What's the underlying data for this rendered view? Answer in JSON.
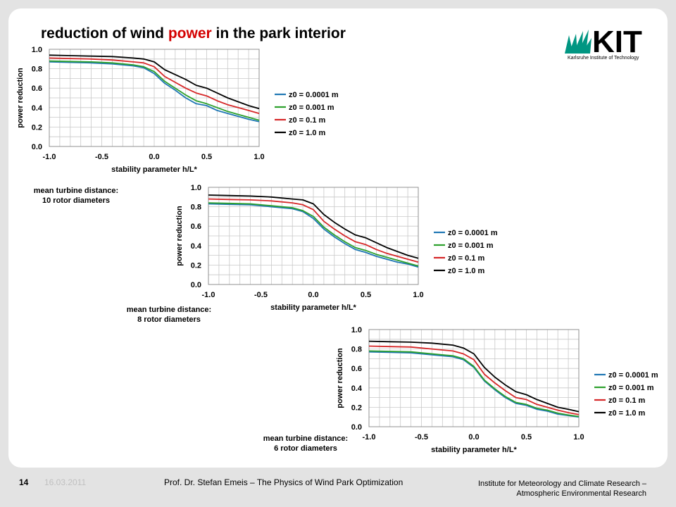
{
  "slide": {
    "title_pre": "reduction of wind ",
    "title_accent": "power",
    "title_post": " in the park interior",
    "accent_color": "#d40000"
  },
  "logo": {
    "text": "KIT",
    "subtitle": "Karlsruhe Institute of Technology",
    "color": "#009682"
  },
  "labels": {
    "chart1": [
      "mean turbine distance:",
      "10 rotor diameters"
    ],
    "chart2": [
      "mean turbine distance:",
      "8 rotor diameters"
    ],
    "chart3": [
      "mean turbine distance:",
      "6 rotor diameters"
    ]
  },
  "footer": {
    "page_number": "14",
    "date": "16.03.2011",
    "author": "Prof. Dr. Stefan Emeis – The Physics of Wind Park Optimization",
    "institute_line1": "Institute for Meteorology and Climate Research –",
    "institute_line2": "Atmospheric Environmental Research"
  },
  "chart_data": [
    {
      "type": "line",
      "xlabel": "stability parameter h/L*",
      "ylabel": "power reduction",
      "xlim": [
        -1.0,
        1.0
      ],
      "ylim": [
        0.0,
        1.0
      ],
      "xticks": [
        "-1.0",
        "-0.5",
        "0.0",
        "0.5",
        "1.0"
      ],
      "yticks": [
        "0.0",
        "0.2",
        "0.4",
        "0.6",
        "0.8",
        "1.0"
      ],
      "grid": true,
      "legend": "right",
      "x": [
        -1.0,
        -0.8,
        -0.6,
        -0.4,
        -0.2,
        -0.1,
        0.0,
        0.1,
        0.2,
        0.3,
        0.4,
        0.5,
        0.6,
        0.7,
        0.8,
        0.9,
        1.0
      ],
      "series": [
        {
          "name": "z0 = 0.0001 m",
          "color": "#1f77b4",
          "values": [
            0.87,
            0.865,
            0.86,
            0.85,
            0.83,
            0.81,
            0.75,
            0.65,
            0.58,
            0.5,
            0.44,
            0.42,
            0.37,
            0.34,
            0.31,
            0.28,
            0.255
          ]
        },
        {
          "name": "z0 = 0.001 m",
          "color": "#2ca02c",
          "values": [
            0.88,
            0.875,
            0.87,
            0.86,
            0.84,
            0.82,
            0.77,
            0.67,
            0.6,
            0.53,
            0.47,
            0.44,
            0.4,
            0.36,
            0.33,
            0.3,
            0.27
          ]
        },
        {
          "name": "z0 = 0.1 m",
          "color": "#d62728",
          "values": [
            0.91,
            0.905,
            0.9,
            0.89,
            0.87,
            0.86,
            0.82,
            0.72,
            0.66,
            0.6,
            0.55,
            0.52,
            0.47,
            0.43,
            0.4,
            0.37,
            0.34
          ]
        },
        {
          "name": "z0 = 1.0 m",
          "color": "#000000",
          "values": [
            0.94,
            0.935,
            0.93,
            0.925,
            0.91,
            0.9,
            0.87,
            0.79,
            0.74,
            0.69,
            0.63,
            0.6,
            0.55,
            0.5,
            0.46,
            0.42,
            0.39
          ]
        }
      ]
    },
    {
      "type": "line",
      "xlabel": "stability parameter h/L*",
      "ylabel": "power reduction",
      "xlim": [
        -1.0,
        1.0
      ],
      "ylim": [
        0.0,
        1.0
      ],
      "xticks": [
        "-1.0",
        "-0.5",
        "0.0",
        "0.5",
        "1.0"
      ],
      "yticks": [
        "0.0",
        "0.2",
        "0.4",
        "0.6",
        "0.8",
        "1.0"
      ],
      "grid": true,
      "legend": "right",
      "x": [
        -1.0,
        -0.8,
        -0.6,
        -0.4,
        -0.2,
        -0.1,
        0.0,
        0.1,
        0.2,
        0.3,
        0.4,
        0.5,
        0.6,
        0.7,
        0.8,
        0.9,
        1.0
      ],
      "series": [
        {
          "name": "z0 = 0.0001 m",
          "color": "#1f77b4",
          "values": [
            0.83,
            0.825,
            0.82,
            0.8,
            0.78,
            0.75,
            0.68,
            0.57,
            0.49,
            0.42,
            0.36,
            0.33,
            0.29,
            0.26,
            0.23,
            0.21,
            0.18
          ]
        },
        {
          "name": "z0 = 0.001 m",
          "color": "#2ca02c",
          "values": [
            0.84,
            0.835,
            0.83,
            0.81,
            0.79,
            0.76,
            0.7,
            0.59,
            0.51,
            0.44,
            0.38,
            0.35,
            0.31,
            0.28,
            0.25,
            0.22,
            0.19
          ]
        },
        {
          "name": "z0 = 0.1 m",
          "color": "#d62728",
          "values": [
            0.88,
            0.875,
            0.87,
            0.86,
            0.84,
            0.82,
            0.77,
            0.65,
            0.57,
            0.5,
            0.44,
            0.41,
            0.36,
            0.32,
            0.29,
            0.26,
            0.23
          ]
        },
        {
          "name": "z0 = 1.0 m",
          "color": "#000000",
          "values": [
            0.92,
            0.915,
            0.91,
            0.9,
            0.88,
            0.87,
            0.83,
            0.72,
            0.64,
            0.57,
            0.51,
            0.48,
            0.43,
            0.38,
            0.34,
            0.3,
            0.27
          ]
        }
      ]
    },
    {
      "type": "line",
      "xlabel": "stability parameter h/L*",
      "ylabel": "power reduction",
      "xlim": [
        -1.0,
        1.0
      ],
      "ylim": [
        0.0,
        1.0
      ],
      "xticks": [
        "-1.0",
        "-0.5",
        "0.0",
        "0.5",
        "1.0"
      ],
      "yticks": [
        "0.0",
        "0.2",
        "0.4",
        "0.6",
        "0.8",
        "1.0"
      ],
      "grid": true,
      "legend": "right",
      "x": [
        -1.0,
        -0.8,
        -0.6,
        -0.4,
        -0.2,
        -0.1,
        0.0,
        0.1,
        0.2,
        0.3,
        0.4,
        0.5,
        0.6,
        0.7,
        0.8,
        0.9,
        1.0
      ],
      "series": [
        {
          "name": "z0 = 0.0001 m",
          "color": "#1f77b4",
          "values": [
            0.77,
            0.765,
            0.76,
            0.74,
            0.72,
            0.69,
            0.61,
            0.47,
            0.38,
            0.3,
            0.24,
            0.22,
            0.18,
            0.16,
            0.13,
            0.115,
            0.1
          ]
        },
        {
          "name": "z0 = 0.001 m",
          "color": "#2ca02c",
          "values": [
            0.78,
            0.775,
            0.77,
            0.75,
            0.73,
            0.7,
            0.62,
            0.48,
            0.39,
            0.31,
            0.25,
            0.23,
            0.19,
            0.17,
            0.14,
            0.12,
            0.105
          ]
        },
        {
          "name": "z0 = 0.1 m",
          "color": "#d62728",
          "values": [
            0.83,
            0.825,
            0.82,
            0.8,
            0.78,
            0.75,
            0.69,
            0.54,
            0.45,
            0.37,
            0.3,
            0.28,
            0.23,
            0.2,
            0.17,
            0.145,
            0.125
          ]
        },
        {
          "name": "z0 = 1.0 m",
          "color": "#000000",
          "values": [
            0.88,
            0.875,
            0.87,
            0.86,
            0.84,
            0.81,
            0.75,
            0.61,
            0.51,
            0.43,
            0.36,
            0.33,
            0.28,
            0.24,
            0.2,
            0.18,
            0.155
          ]
        }
      ]
    }
  ]
}
